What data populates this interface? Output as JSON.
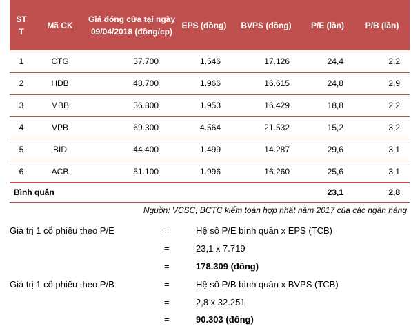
{
  "table": {
    "headers": {
      "stt": "STT",
      "ma_ck": "Mã CK",
      "gia": "Giá đóng cửa tại ngày 09/04/2018 (đồng/cp)",
      "eps": "EPS (đồng)",
      "bvps": "BVPS (đồng)",
      "pe": "P/E (lần)",
      "pb": "P/B (lần)"
    },
    "rows": [
      {
        "stt": "1",
        "ma": "CTG",
        "gia": "37.700",
        "eps": "1.546",
        "bvps": "17.126",
        "pe": "24,4",
        "pb": "2,2"
      },
      {
        "stt": "2",
        "ma": "HDB",
        "gia": "48.700",
        "eps": "1.966",
        "bvps": "16.615",
        "pe": "24,8",
        "pb": "2,9"
      },
      {
        "stt": "3",
        "ma": "MBB",
        "gia": "36.800",
        "eps": "1.953",
        "bvps": "16.429",
        "pe": "18,8",
        "pb": "2,2"
      },
      {
        "stt": "4",
        "ma": "VPB",
        "gia": "69.300",
        "eps": "4.564",
        "bvps": "21.532",
        "pe": "15,2",
        "pb": "3,2"
      },
      {
        "stt": "5",
        "ma": "BID",
        "gia": "44.400",
        "eps": "1.499",
        "bvps": "14.287",
        "pe": "29,6",
        "pb": "3,1"
      },
      {
        "stt": "6",
        "ma": "ACB",
        "gia": "51.100",
        "eps": "1.996",
        "bvps": "16.260",
        "pe": "25,6",
        "pb": "3,1"
      }
    ],
    "average": {
      "label": "Bình quân",
      "pe": "23,1",
      "pb": "2,8"
    }
  },
  "source": "Nguồn: VCSC, BCTC kiểm toán hợp nhất năm 2017 của các ngân hàng",
  "calc": {
    "pe_label": "Giá trị 1 cổ phiếu theo P/E",
    "pe_line1": "Hệ số P/E bình quân  x  EPS (TCB)",
    "pe_line2": "23,1 x 7.719",
    "pe_result": "178.309 (đồng)",
    "pb_label": "Giá trị 1 cổ phiếu theo P/B",
    "pb_line1": "Hệ số P/B bình quân  x  BVPS (TCB)",
    "pb_line2": "2,8 x 32.251",
    "pb_result": "90.303 (đồng)",
    "equals": "="
  },
  "colors": {
    "header_bg": "#c0504d",
    "header_text": "#ffffff"
  }
}
